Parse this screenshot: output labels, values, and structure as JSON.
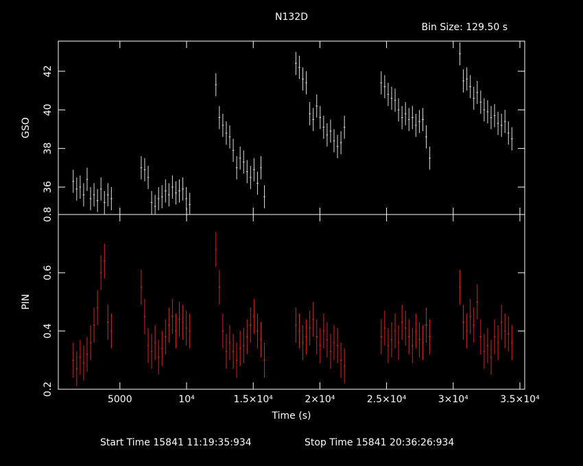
{
  "chart_data": {
    "type": "lightcurve",
    "title": "N132D",
    "subtitle": "Bin Size: 129.50 s",
    "xlabel": "Time (s)",
    "footer_start": "Start Time 15841 11:19:35:934",
    "footer_stop": "Stop Time 15841 20:36:26:934",
    "xlim": [
      380,
      35360
    ],
    "xticks": [
      5000,
      {
        "value": 10000,
        "label": "10⁴"
      },
      {
        "value": 15000,
        "label": "1.5×10⁴"
      },
      {
        "value": 20000,
        "label": "2×10⁴"
      },
      {
        "value": 25000,
        "label": "2.5×10⁴"
      },
      {
        "value": 30000,
        "label": "3×10⁴"
      },
      {
        "value": 35000,
        "label": "3.5×10⁴"
      }
    ],
    "xerr": 64.75,
    "x": [
      1500,
      1760,
      2020,
      2280,
      2540,
      2800,
      3060,
      3320,
      3580,
      3840,
      4100,
      4360,
      6600,
      6860,
      7120,
      7380,
      7640,
      7900,
      8160,
      8420,
      8680,
      8940,
      9200,
      9460,
      9720,
      9980,
      10240,
      12200,
      12460,
      12720,
      12980,
      13240,
      13500,
      13760,
      14020,
      14280,
      14540,
      14800,
      15060,
      15320,
      15580,
      15840,
      18200,
      18460,
      18720,
      18980,
      19240,
      19500,
      19760,
      20020,
      20280,
      20540,
      20800,
      21060,
      21320,
      21580,
      21840,
      24600,
      24860,
      25120,
      25380,
      25640,
      25900,
      26160,
      26420,
      26680,
      26940,
      27200,
      27460,
      27720,
      27980,
      28240,
      30500,
      30760,
      31020,
      31280,
      31540,
      31800,
      32060,
      32320,
      32580,
      32840,
      33100,
      33360,
      33620,
      33880,
      34140,
      34400
    ],
    "panels": [
      {
        "ylabel": "GSO",
        "color": "#dddddd",
        "ylim": [
          34.58,
          43.56
        ],
        "yticks": [
          36,
          38,
          40,
          42
        ],
        "error": 0.6,
        "values": [
          36.3,
          35.9,
          36.0,
          35.6,
          36.4,
          35.4,
          35.6,
          35.3,
          35.9,
          35.2,
          35.6,
          35.4,
          37.0,
          36.9,
          36.5,
          35.2,
          35.0,
          35.4,
          35.5,
          35.8,
          35.6,
          36.0,
          35.7,
          35.8,
          35.9,
          35.4,
          35.1,
          41.3,
          39.6,
          39.2,
          38.8,
          38.6,
          37.9,
          37.0,
          37.5,
          37.3,
          36.8,
          36.5,
          36.9,
          36.2,
          37.0,
          35.5,
          42.4,
          42.2,
          41.6,
          41.4,
          39.8,
          39.5,
          40.2,
          39.6,
          39.1,
          38.7,
          38.9,
          38.4,
          38.1,
          38.3,
          39.1,
          41.4,
          41.2,
          40.8,
          40.6,
          40.5,
          40.0,
          39.6,
          39.8,
          39.5,
          39.6,
          39.2,
          39.4,
          39.5,
          38.6,
          37.5,
          42.9,
          41.5,
          41.6,
          41.2,
          40.6,
          40.9,
          40.4,
          40.0,
          39.9,
          39.6,
          39.7,
          39.3,
          39.2,
          39.4,
          38.8,
          38.5
        ]
      },
      {
        "ylabel": "PIN",
        "color": "#dd2222",
        "ylim": [
          0.2,
          0.8
        ],
        "yticks": [
          0.2,
          0.4,
          0.6,
          0.8
        ],
        "error": 0.06,
        "values": [
          0.3,
          0.27,
          0.31,
          0.29,
          0.32,
          0.36,
          0.42,
          0.48,
          0.6,
          0.64,
          0.43,
          0.4,
          0.55,
          0.45,
          0.35,
          0.33,
          0.36,
          0.31,
          0.34,
          0.38,
          0.42,
          0.45,
          0.4,
          0.44,
          0.43,
          0.41,
          0.4,
          0.68,
          0.55,
          0.4,
          0.33,
          0.36,
          0.33,
          0.3,
          0.34,
          0.35,
          0.38,
          0.42,
          0.45,
          0.4,
          0.37,
          0.3,
          0.42,
          0.4,
          0.36,
          0.38,
          0.41,
          0.44,
          0.38,
          0.35,
          0.4,
          0.37,
          0.33,
          0.36,
          0.35,
          0.3,
          0.28,
          0.38,
          0.41,
          0.35,
          0.37,
          0.4,
          0.36,
          0.43,
          0.41,
          0.38,
          0.35,
          0.4,
          0.37,
          0.36,
          0.42,
          0.38,
          0.55,
          0.43,
          0.4,
          0.45,
          0.42,
          0.5,
          0.38,
          0.33,
          0.35,
          0.31,
          0.38,
          0.36,
          0.43,
          0.4,
          0.39,
          0.36
        ]
      }
    ]
  }
}
